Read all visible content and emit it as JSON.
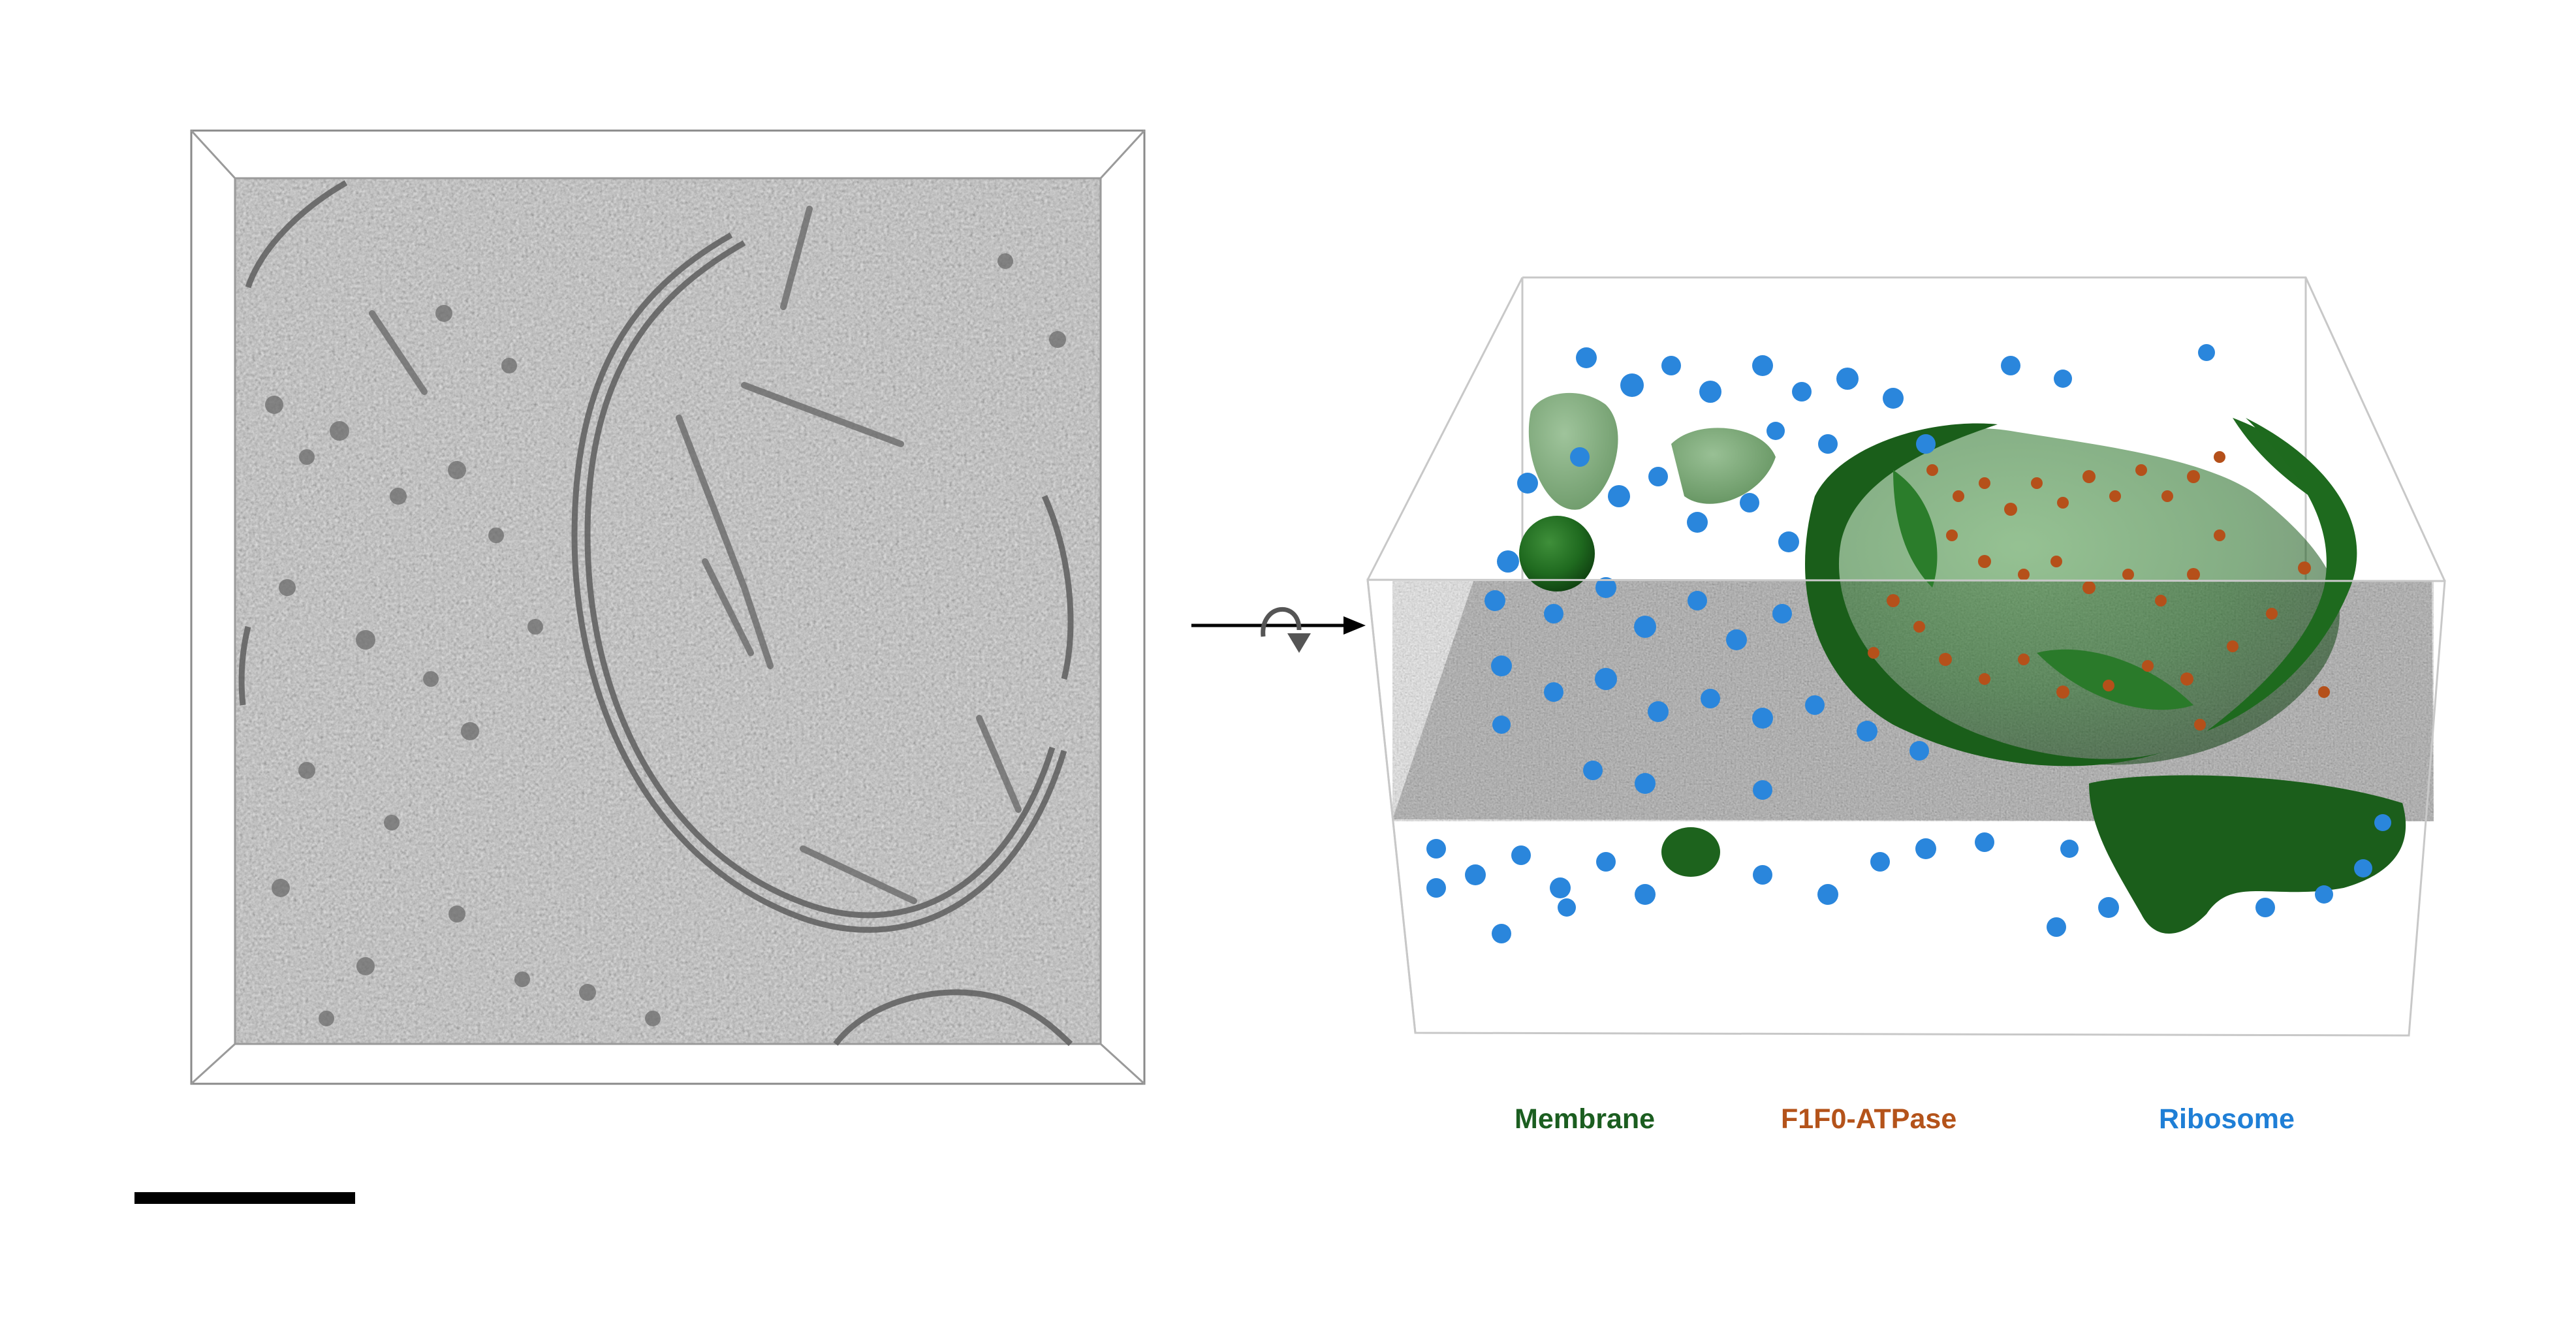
{
  "figure": {
    "left_panel": {
      "description_icon": "tomogram-slice-image"
    },
    "transition_icon": "rotate-arrow-icon",
    "right_panel": {
      "description_icon": "segmented-3d-volume-image"
    },
    "legend": {
      "membrane": {
        "label": "Membrane",
        "color": "#1b5e20"
      },
      "atpase": {
        "label": "F1F0-ATPase",
        "color": "#b4531a"
      },
      "ribosome": {
        "label": "Ribosome",
        "color": "#1f7fd6"
      }
    },
    "colors": {
      "tomogram_gray": "#9a9a9a",
      "membrane_green": "#1f6b1f",
      "atpase_orange": "#b5501a",
      "ribosome_blue": "#2a86dc",
      "scale_bar": "#000000"
    }
  }
}
